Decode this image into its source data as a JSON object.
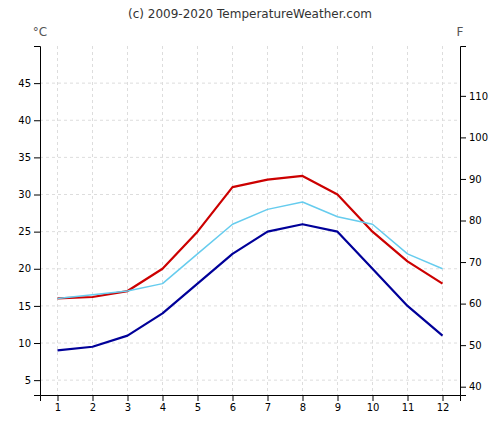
{
  "chart_data": {
    "type": "line",
    "title": "(c) 2009-2020 TemperatureWeather.com",
    "ylabel": "°C",
    "y2label": "F",
    "x": [
      1,
      2,
      3,
      4,
      5,
      6,
      7,
      8,
      9,
      10,
      11,
      12
    ],
    "series": [
      {
        "color": "#cc0000",
        "values": [
          16,
          16.2,
          17,
          20,
          25,
          31,
          32,
          32.5,
          30,
          25,
          21,
          18
        ]
      },
      {
        "color": "#000099",
        "values": [
          9,
          9.5,
          11,
          14,
          18,
          22,
          25,
          26,
          25,
          20,
          15,
          11
        ]
      },
      {
        "color": "#66ccee",
        "values": [
          16,
          16.5,
          17,
          18,
          22,
          26,
          28,
          29,
          27,
          26,
          22,
          20
        ]
      }
    ],
    "xlim": [
      0.5,
      12.5
    ],
    "xticks": [
      1,
      2,
      3,
      4,
      5,
      6,
      7,
      8,
      9,
      10,
      11,
      12
    ],
    "ylim": [
      3,
      50
    ],
    "yticks": [
      5,
      10,
      15,
      20,
      25,
      30,
      35,
      40,
      45
    ],
    "y2lim": [
      38,
      122
    ],
    "y2ticks": [
      40,
      50,
      60,
      70,
      80,
      90,
      100,
      110
    ],
    "grid": true
  }
}
